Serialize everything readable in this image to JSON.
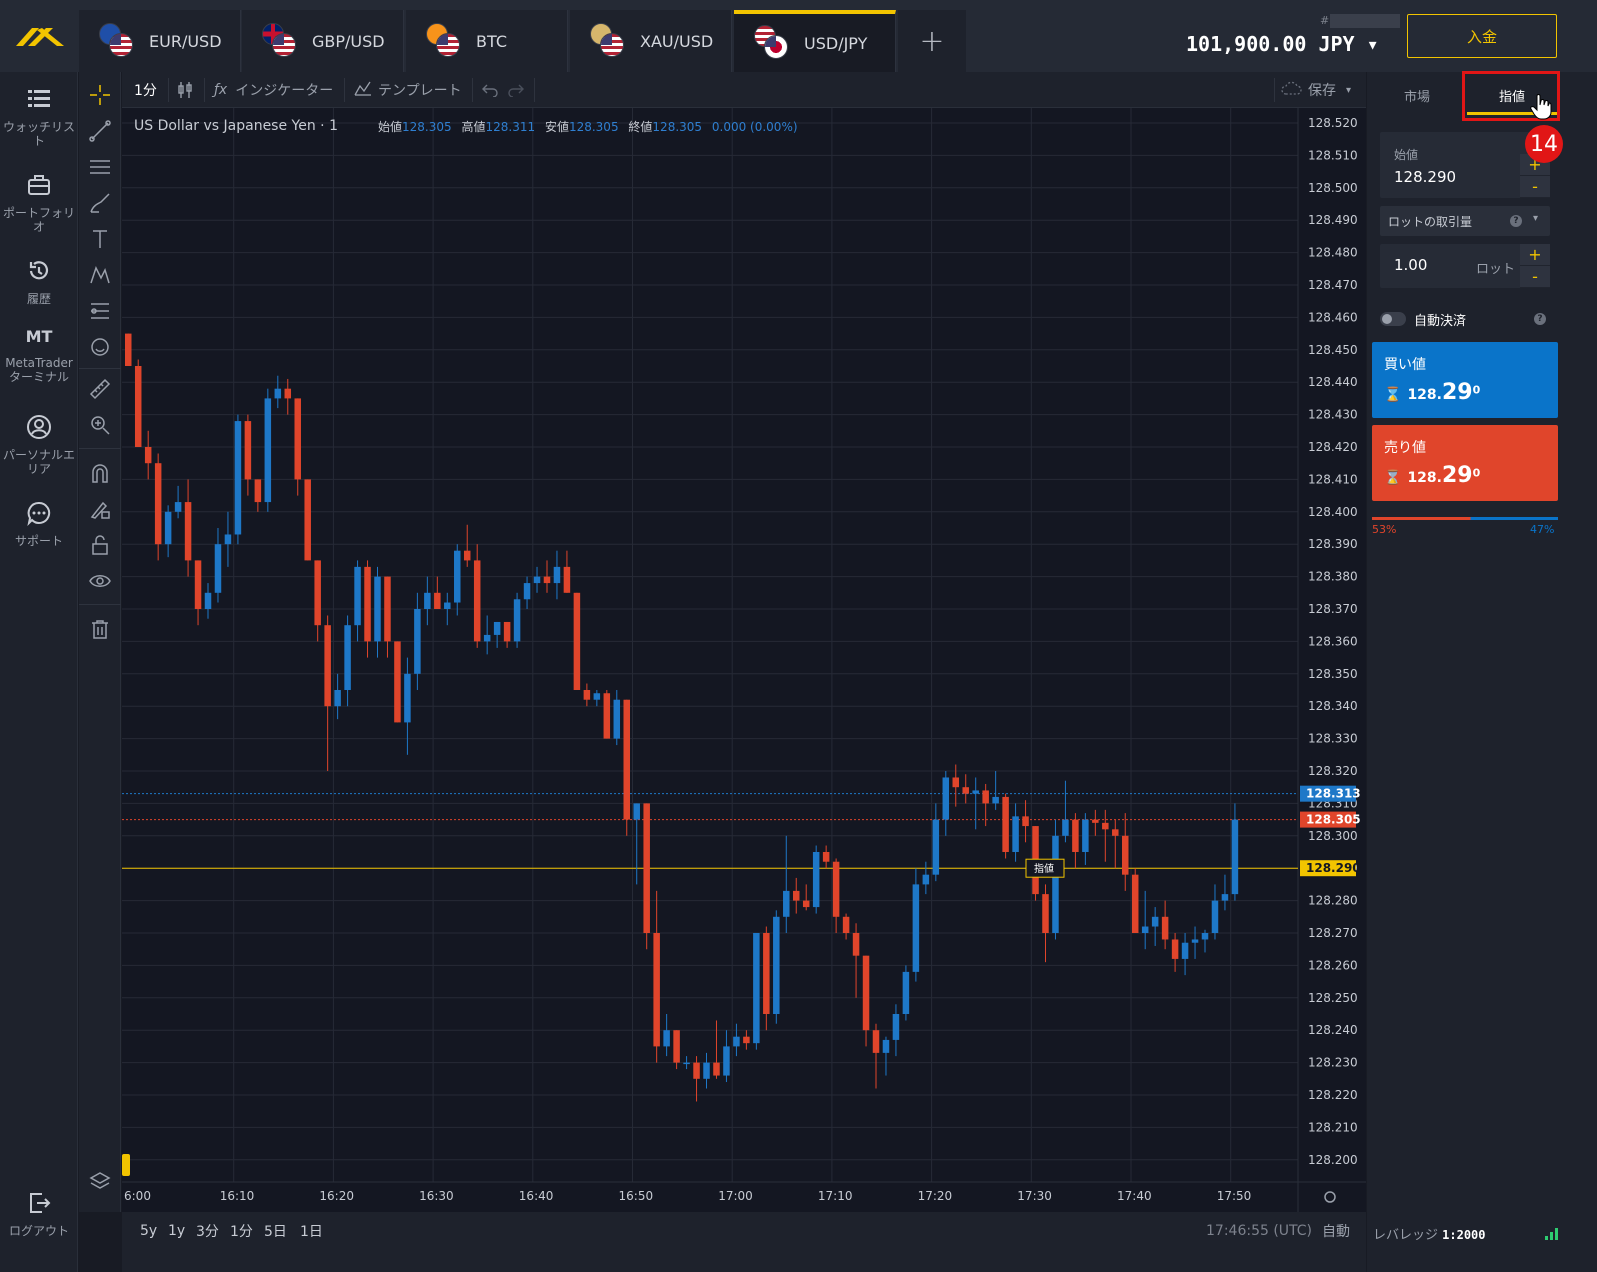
{
  "tabs": [
    {
      "label": "EUR/USD",
      "flag_primary": "#1f4fa8"
    },
    {
      "label": "GBP/USD",
      "flag_primary": "#c8102e"
    },
    {
      "label": "BTC",
      "flag_primary": "#f7931a"
    },
    {
      "label": "XAU/USD",
      "flag_primary": "#d6b66c"
    },
    {
      "label": "USD/JPY",
      "flag_primary": "#ffffff",
      "active": true
    }
  ],
  "account": {
    "hash": "#",
    "balance": "101,900.00 JPY ▾",
    "deposit_label": "入金"
  },
  "nav": {
    "watchlist": "ウォッチリスト",
    "portfolio": "ポートフォリオ",
    "history": "履歴",
    "mt_icon": "MT",
    "mt_label": "MetaTrader ターミナル",
    "personal": "パーソナルエリア",
    "support": "サポート",
    "logout": "ログアウト"
  },
  "toolbar": {
    "interval": "1分",
    "indicators": "インジケーター",
    "templates": "テンプレート",
    "save": "保存"
  },
  "chart": {
    "symbol_title": "US Dollar vs Japanese Yen · 1",
    "ohlc": {
      "open_label": "始値",
      "open": "128.305",
      "high_label": "高値",
      "high": "128.311",
      "low_label": "安値",
      "low": "128.305",
      "close_label": "終値",
      "close": "128.305",
      "change": "0.000 (0.00%)"
    },
    "price_tag_ask": "128.313",
    "price_tag_bid": "128.305",
    "price_tag_limit": "128.290",
    "limit_tag_label": "指値"
  },
  "chart_data": {
    "type": "candlestick",
    "title": "US Dollar vs Japanese Yen · 1",
    "ylim": [
      128.195,
      128.525
    ],
    "y_ticks": [
      "128.520",
      "128.510",
      "128.500",
      "128.490",
      "128.480",
      "128.470",
      "128.460",
      "128.450",
      "128.440",
      "128.430",
      "128.420",
      "128.410",
      "128.400",
      "128.390",
      "128.380",
      "128.370",
      "128.360",
      "128.350",
      "128.340",
      "128.330",
      "128.320",
      "128.310",
      "128.300",
      "128.290",
      "128.280",
      "128.270",
      "128.260",
      "128.250",
      "128.240",
      "128.230",
      "128.220",
      "128.210",
      "128.200"
    ],
    "x_ticks": [
      "6:00",
      "16:10",
      "16:20",
      "16:30",
      "16:40",
      "16:50",
      "17:00",
      "17:10",
      "17:20",
      "17:30",
      "17:40",
      "17:50"
    ],
    "horizontal_lines": {
      "ask": 128.313,
      "bid": 128.305,
      "limit": 128.29
    },
    "colors": {
      "up": "#1e78c8",
      "down": "#e0452b",
      "limit": "#f2c400"
    },
    "candles": [
      [
        128.455,
        128.455,
        128.445,
        128.445
      ],
      [
        128.445,
        128.447,
        128.42,
        128.42
      ],
      [
        128.42,
        128.425,
        128.41,
        128.415
      ],
      [
        128.415,
        128.418,
        128.385,
        128.39
      ],
      [
        128.39,
        128.402,
        128.386,
        128.4
      ],
      [
        128.4,
        128.408,
        128.398,
        128.403
      ],
      [
        128.403,
        128.41,
        128.38,
        128.385
      ],
      [
        128.385,
        128.385,
        128.365,
        128.37
      ],
      [
        128.37,
        128.378,
        128.367,
        128.375
      ],
      [
        128.375,
        128.395,
        128.372,
        128.39
      ],
      [
        128.39,
        128.4,
        128.383,
        128.393
      ],
      [
        128.393,
        128.43,
        128.39,
        128.428
      ],
      [
        128.428,
        128.43,
        128.405,
        128.41
      ],
      [
        128.41,
        128.41,
        128.4,
        128.403
      ],
      [
        128.403,
        128.438,
        128.4,
        128.435
      ],
      [
        128.435,
        128.442,
        128.432,
        128.438
      ],
      [
        128.438,
        128.441,
        128.43,
        128.435
      ],
      [
        128.435,
        128.435,
        128.405,
        128.41
      ],
      [
        128.41,
        128.41,
        128.385,
        128.385
      ],
      [
        128.385,
        128.385,
        128.36,
        128.365
      ],
      [
        128.365,
        128.368,
        128.32,
        128.34
      ],
      [
        128.34,
        128.35,
        128.336,
        128.345
      ],
      [
        128.345,
        128.368,
        128.34,
        128.365
      ],
      [
        128.365,
        128.385,
        128.36,
        128.383
      ],
      [
        128.383,
        128.385,
        128.355,
        128.36
      ],
      [
        128.36,
        128.383,
        128.355,
        128.38
      ],
      [
        128.38,
        128.38,
        128.355,
        128.36
      ],
      [
        128.36,
        128.36,
        128.335,
        128.335
      ],
      [
        128.335,
        128.355,
        128.325,
        128.35
      ],
      [
        128.35,
        128.375,
        128.345,
        128.37
      ],
      [
        128.37,
        128.38,
        128.365,
        128.375
      ],
      [
        128.375,
        128.38,
        128.37,
        128.37
      ],
      [
        128.37,
        128.375,
        128.365,
        128.372
      ],
      [
        128.372,
        128.39,
        128.368,
        128.388
      ],
      [
        128.388,
        128.396,
        128.383,
        128.385
      ],
      [
        128.385,
        128.39,
        128.358,
        128.36
      ],
      [
        128.36,
        128.368,
        128.356,
        128.362
      ],
      [
        128.362,
        128.366,
        128.358,
        128.366
      ],
      [
        128.366,
        128.366,
        128.358,
        128.36
      ],
      [
        128.36,
        128.375,
        128.358,
        128.373
      ],
      [
        128.373,
        128.38,
        128.37,
        128.378
      ],
      [
        128.378,
        128.383,
        128.375,
        128.38
      ],
      [
        128.38,
        128.385,
        128.375,
        128.378
      ],
      [
        128.378,
        128.388,
        128.373,
        128.383
      ],
      [
        128.383,
        128.388,
        128.375,
        128.375
      ],
      [
        128.375,
        128.375,
        128.345,
        128.345
      ],
      [
        128.345,
        128.347,
        128.34,
        128.342
      ],
      [
        128.342,
        128.345,
        128.34,
        128.344
      ],
      [
        128.344,
        128.345,
        128.33,
        128.33
      ],
      [
        128.33,
        128.345,
        128.328,
        128.342
      ],
      [
        128.342,
        128.342,
        128.3,
        128.305
      ],
      [
        128.305,
        128.31,
        128.285,
        128.31
      ],
      [
        128.31,
        128.31,
        128.265,
        128.27
      ],
      [
        128.27,
        128.283,
        128.23,
        128.235
      ],
      [
        128.235,
        128.245,
        128.232,
        128.24
      ],
      [
        128.24,
        128.24,
        128.228,
        128.23
      ],
      [
        128.23,
        128.232,
        128.228,
        128.23
      ],
      [
        128.23,
        128.232,
        128.218,
        128.225
      ],
      [
        128.225,
        128.233,
        128.222,
        128.23
      ],
      [
        128.23,
        128.243,
        128.225,
        128.226
      ],
      [
        128.226,
        128.24,
        128.224,
        128.235
      ],
      [
        128.235,
        128.242,
        128.232,
        128.238
      ],
      [
        128.238,
        128.24,
        128.234,
        128.236
      ],
      [
        128.236,
        128.27,
        128.234,
        128.27
      ],
      [
        128.27,
        128.272,
        128.24,
        128.245
      ],
      [
        128.245,
        128.277,
        128.242,
        128.275
      ],
      [
        128.275,
        128.3,
        128.27,
        128.283
      ],
      [
        128.283,
        128.287,
        128.276,
        128.28
      ],
      [
        128.28,
        128.285,
        128.277,
        128.278
      ],
      [
        128.278,
        128.297,
        128.276,
        128.295
      ],
      [
        128.295,
        128.297,
        128.29,
        128.292
      ],
      [
        128.292,
        128.293,
        128.27,
        128.275
      ],
      [
        128.275,
        128.276,
        128.268,
        128.27
      ],
      [
        128.27,
        128.273,
        128.25,
        128.263
      ],
      [
        128.263,
        128.263,
        128.235,
        128.24
      ],
      [
        128.24,
        128.242,
        128.222,
        128.233
      ],
      [
        128.233,
        128.238,
        128.226,
        128.237
      ],
      [
        128.237,
        128.248,
        128.232,
        128.245
      ],
      [
        128.245,
        128.26,
        128.243,
        128.258
      ],
      [
        128.258,
        128.29,
        128.255,
        128.285
      ],
      [
        128.285,
        128.292,
        128.282,
        128.288
      ],
      [
        128.288,
        128.31,
        128.286,
        128.305
      ],
      [
        128.305,
        128.32,
        128.3,
        128.318
      ],
      [
        128.318,
        128.322,
        128.309,
        128.315
      ],
      [
        128.315,
        128.319,
        128.31,
        128.313
      ],
      [
        128.313,
        128.318,
        128.302,
        128.314
      ],
      [
        128.314,
        128.316,
        128.303,
        128.31
      ],
      [
        128.31,
        128.32,
        128.308,
        128.312
      ],
      [
        128.312,
        128.313,
        128.293,
        128.295
      ],
      [
        128.295,
        128.31,
        128.292,
        128.306
      ],
      [
        128.306,
        128.311,
        128.298,
        128.303
      ],
      [
        128.303,
        128.303,
        128.28,
        128.282
      ],
      [
        128.282,
        128.285,
        128.261,
        128.27
      ],
      [
        128.27,
        128.305,
        128.268,
        128.3
      ],
      [
        128.3,
        128.317,
        128.298,
        128.305
      ],
      [
        128.305,
        128.307,
        128.29,
        128.295
      ],
      [
        128.295,
        128.307,
        128.291,
        128.305
      ],
      [
        128.305,
        128.308,
        128.3,
        128.304
      ],
      [
        128.304,
        128.308,
        128.292,
        128.302
      ],
      [
        128.302,
        128.305,
        128.29,
        128.3
      ],
      [
        128.3,
        128.307,
        128.283,
        128.288
      ],
      [
        128.288,
        128.29,
        128.27,
        128.27
      ],
      [
        128.27,
        128.283,
        128.265,
        128.272
      ],
      [
        128.272,
        128.278,
        128.266,
        128.275
      ],
      [
        128.275,
        128.28,
        128.265,
        128.268
      ],
      [
        128.268,
        128.27,
        128.258,
        128.262
      ],
      [
        128.262,
        128.27,
        128.257,
        128.267
      ],
      [
        128.267,
        128.272,
        128.262,
        128.268
      ],
      [
        128.268,
        128.271,
        128.264,
        128.27
      ],
      [
        128.27,
        128.285,
        128.268,
        128.28
      ],
      [
        128.28,
        128.288,
        128.277,
        128.282
      ],
      [
        128.282,
        128.31,
        128.28,
        128.305
      ]
    ]
  },
  "timeframes": [
    "5y",
    "1y",
    "3分",
    "1分",
    "5日",
    "1日"
  ],
  "status": {
    "clock": "17:46:55 (UTC)",
    "auto": "自動"
  },
  "panel": {
    "tab_market": "市場",
    "tab_limit": "指値",
    "step_badge": "14",
    "open_label": "始値",
    "open_value": "128.290",
    "lot_dropdown": "ロットの取引量",
    "lot_value": "1.00",
    "lot_unit": "ロット",
    "auto_close": "自動決済",
    "buy_label": "買い値",
    "buy_price_small": "128.",
    "buy_price_big": "29",
    "buy_price_sup": "0",
    "sell_label": "売り値",
    "sell_price_small": "128.",
    "sell_price_big": "29",
    "sell_price_sup": "0",
    "sell_pct": "53%",
    "buy_pct": "47%",
    "sell_share": 0.53,
    "leverage_label": "レバレッジ",
    "leverage_value": "1:2000"
  }
}
